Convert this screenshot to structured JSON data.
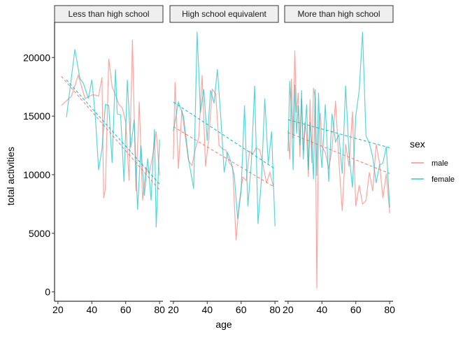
{
  "chart_data": {
    "type": "line",
    "facet_by": "education",
    "panels": [
      "Less than high school",
      "High school equivalent",
      "More than high school"
    ],
    "xlabel": "age",
    "ylabel": "total activities",
    "xlim": [
      18,
      82
    ],
    "ylim": [
      -800,
      23000
    ],
    "x_ticks": [
      20,
      40,
      60,
      80
    ],
    "y_ticks": [
      0,
      5000,
      10000,
      15000,
      20000
    ],
    "x_tick_labels": [
      "20",
      "40",
      "60",
      "80"
    ],
    "y_tick_labels": [
      "0",
      "5000",
      "10000",
      "15000",
      "20000"
    ],
    "grid": false,
    "legend": {
      "title": "sex",
      "position": "right",
      "items": [
        {
          "label": "male",
          "color": "#F8766D"
        },
        {
          "label": "female",
          "color": "#00BFC4"
        }
      ]
    },
    "series": [
      {
        "name": "male",
        "panel": "Less than high school",
        "color": "#F8766D",
        "x": [
          22,
          28,
          32,
          36,
          40,
          42,
          44,
          46,
          47,
          48,
          50,
          52,
          54,
          56,
          58,
          60,
          62,
          64,
          66,
          68,
          70,
          72,
          74,
          76,
          78,
          80
        ],
        "y": [
          15900,
          16700,
          18500,
          16500,
          16800,
          16800,
          16700,
          18300,
          8000,
          8800,
          19900,
          17500,
          16800,
          16000,
          15700,
          14500,
          9500,
          21500,
          8600,
          16200,
          7800,
          10600,
          10100,
          11700,
          13700,
          9900
        ],
        "trend": [
          18400,
          8700
        ]
      },
      {
        "name": "female",
        "panel": "Less than high school",
        "color": "#00BFC4",
        "x": [
          25,
          30,
          33,
          35,
          38,
          40,
          42,
          44,
          46,
          48,
          50,
          52,
          54,
          55,
          57,
          59,
          61,
          63,
          65,
          67,
          69,
          71,
          73,
          75,
          77,
          78,
          80
        ],
        "y": [
          14900,
          20700,
          18200,
          17800,
          16500,
          18100,
          15200,
          10400,
          12200,
          16000,
          15900,
          11000,
          19000,
          15200,
          15100,
          9400,
          18100,
          12300,
          14700,
          7000,
          12500,
          8200,
          11400,
          7800,
          13900,
          5500,
          13000
        ],
        "trend": [
          18100,
          9200
        ]
      },
      {
        "name": "male",
        "panel": "High school equivalent",
        "color": "#F8766D",
        "x": [
          20,
          21,
          23,
          25,
          27,
          29,
          31,
          33,
          35,
          37,
          39,
          41,
          43,
          45,
          47,
          49,
          51,
          53,
          55,
          57,
          59,
          61,
          63,
          65,
          67,
          69,
          71,
          73,
          75,
          77,
          79
        ],
        "y": [
          11300,
          17900,
          10500,
          15500,
          13300,
          11200,
          10800,
          12200,
          13200,
          18500,
          10700,
          13200,
          17300,
          16900,
          12500,
          12200,
          12100,
          11000,
          10700,
          4400,
          7700,
          9800,
          9500,
          12000,
          11800,
          12300,
          12100,
          10800,
          9300,
          10200,
          9000
        ],
        "trend": [
          14100,
          9000
        ]
      },
      {
        "name": "female",
        "panel": "High school equivalent",
        "color": "#00BFC4",
        "x": [
          20,
          23,
          26,
          29,
          32,
          34,
          36,
          38,
          40,
          42,
          44,
          46,
          48,
          50,
          52,
          54,
          56,
          58,
          60,
          62,
          64,
          66,
          68,
          70,
          72,
          74,
          76,
          78,
          80
        ],
        "y": [
          13700,
          16200,
          15000,
          11300,
          8800,
          22200,
          15300,
          17300,
          12900,
          17200,
          16100,
          19000,
          14900,
          10200,
          11900,
          11100,
          9900,
          6200,
          8600,
          15900,
          7300,
          11000,
          17600,
          5800,
          9600,
          16500,
          10900,
          13700,
          5600
        ],
        "trend": [
          16200,
          10500
        ]
      },
      {
        "name": "male",
        "panel": "More than high school",
        "color": "#F8766D",
        "x": [
          20,
          21,
          22,
          23,
          24,
          25,
          26,
          27,
          28,
          29,
          30,
          31,
          32,
          33,
          34,
          35,
          36,
          37,
          38,
          39,
          40,
          42,
          44,
          46,
          48,
          50,
          52,
          54,
          56,
          58,
          60,
          62,
          64,
          66,
          68,
          70,
          72,
          74,
          76,
          78,
          80
        ],
        "y": [
          13800,
          11300,
          18200,
          13100,
          20600,
          15300,
          17000,
          11500,
          16500,
          12100,
          14500,
          13300,
          9800,
          16400,
          11000,
          17400,
          16600,
          300,
          13700,
          15300,
          12400,
          11900,
          10500,
          12200,
          16300,
          11200,
          6900,
          12600,
          10700,
          15400,
          7300,
          9100,
          7500,
          7800,
          10200,
          8600,
          12600,
          11000,
          8000,
          10100,
          6700
        ],
        "trend": [
          13600,
          10100
        ]
      },
      {
        "name": "female",
        "panel": "More than high school",
        "color": "#00BFC4",
        "x": [
          20,
          21,
          22,
          23,
          24,
          25,
          26,
          27,
          28,
          29,
          30,
          31,
          32,
          33,
          34,
          35,
          36,
          37,
          38,
          39,
          40,
          42,
          44,
          46,
          48,
          50,
          52,
          54,
          56,
          58,
          60,
          62,
          64,
          66,
          68,
          70,
          72,
          74,
          76,
          78,
          80
        ],
        "y": [
          12000,
          18000,
          15300,
          10400,
          17700,
          13500,
          15900,
          12500,
          17200,
          11300,
          14000,
          16000,
          10400,
          14500,
          12600,
          9600,
          17300,
          9900,
          17000,
          12400,
          10600,
          16000,
          9400,
          15200,
          12800,
          13400,
          10100,
          17600,
          11800,
          8900,
          15000,
          17200,
          22200,
          13300,
          12700,
          11500,
          9300,
          10800,
          11000,
          12400,
          7200
        ],
        "trend": [
          14700,
          12300
        ]
      }
    ]
  }
}
